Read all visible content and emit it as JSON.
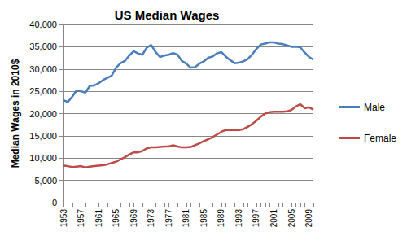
{
  "chart_data": {
    "type": "line",
    "title": "US Median Wages",
    "y_label": "Median Wages in 2010$",
    "categories": [
      "1953",
      null,
      null,
      null,
      "1957",
      null,
      null,
      null,
      "1961",
      null,
      null,
      null,
      "1965",
      null,
      null,
      null,
      "1969",
      null,
      null,
      null,
      "1973",
      null,
      null,
      null,
      "1977",
      null,
      null,
      null,
      "1981",
      null,
      null,
      null,
      "1985",
      null,
      null,
      null,
      "1989",
      null,
      null,
      null,
      "1993",
      null,
      null,
      null,
      "1997",
      null,
      null,
      null,
      "2001",
      null,
      null,
      null,
      "2005",
      null,
      null,
      null,
      "2009",
      null
    ],
    "series": [
      {
        "name": "Male",
        "color": "#4a7ebb",
        "values": [
          23000,
          22600,
          23800,
          25200,
          25000,
          24700,
          26200,
          26300,
          26800,
          27500,
          28000,
          28500,
          30300,
          31300,
          31800,
          33000,
          34000,
          33500,
          33200,
          34800,
          35400,
          33800,
          32700,
          33000,
          33200,
          33600,
          33200,
          31800,
          31200,
          30300,
          30400,
          31200,
          31700,
          32500,
          32800,
          33500,
          33800,
          32800,
          32000,
          31300,
          31400,
          31700,
          32200,
          33200,
          34500,
          35500,
          35700,
          36000,
          36000,
          35700,
          35600,
          35300,
          35000,
          35000,
          34900,
          33700,
          32700,
          32100
        ]
      },
      {
        "name": "Female",
        "color": "#be4b48",
        "values": [
          8300,
          8200,
          8000,
          8100,
          8200,
          7900,
          8100,
          8200,
          8300,
          8400,
          8600,
          8900,
          9200,
          9700,
          10200,
          10800,
          11300,
          11300,
          11600,
          12200,
          12400,
          12400,
          12500,
          12600,
          12600,
          12900,
          12600,
          12400,
          12400,
          12500,
          12900,
          13300,
          13800,
          14200,
          14700,
          15300,
          15900,
          16300,
          16300,
          16300,
          16300,
          16500,
          17000,
          17600,
          18400,
          19300,
          20000,
          20300,
          20400,
          20400,
          20400,
          20500,
          20800,
          21600,
          22100,
          21200,
          21400,
          20900
        ]
      }
    ],
    "ylim": [
      0,
      40000
    ],
    "yticks": [
      0,
      {
        "value": 5000,
        "label": "5,000"
      },
      {
        "value": 10000,
        "label": "10,000"
      },
      {
        "value": 15000,
        "label": "15,000"
      },
      {
        "value": 20000,
        "label": "20,000"
      },
      {
        "value": 25000,
        "label": "25,000"
      },
      {
        "value": 30000,
        "label": "30,000"
      },
      {
        "value": 35000,
        "label": "35,000"
      },
      {
        "value": 40000,
        "label": "40,000"
      }
    ],
    "grid": true,
    "legend": "right"
  }
}
